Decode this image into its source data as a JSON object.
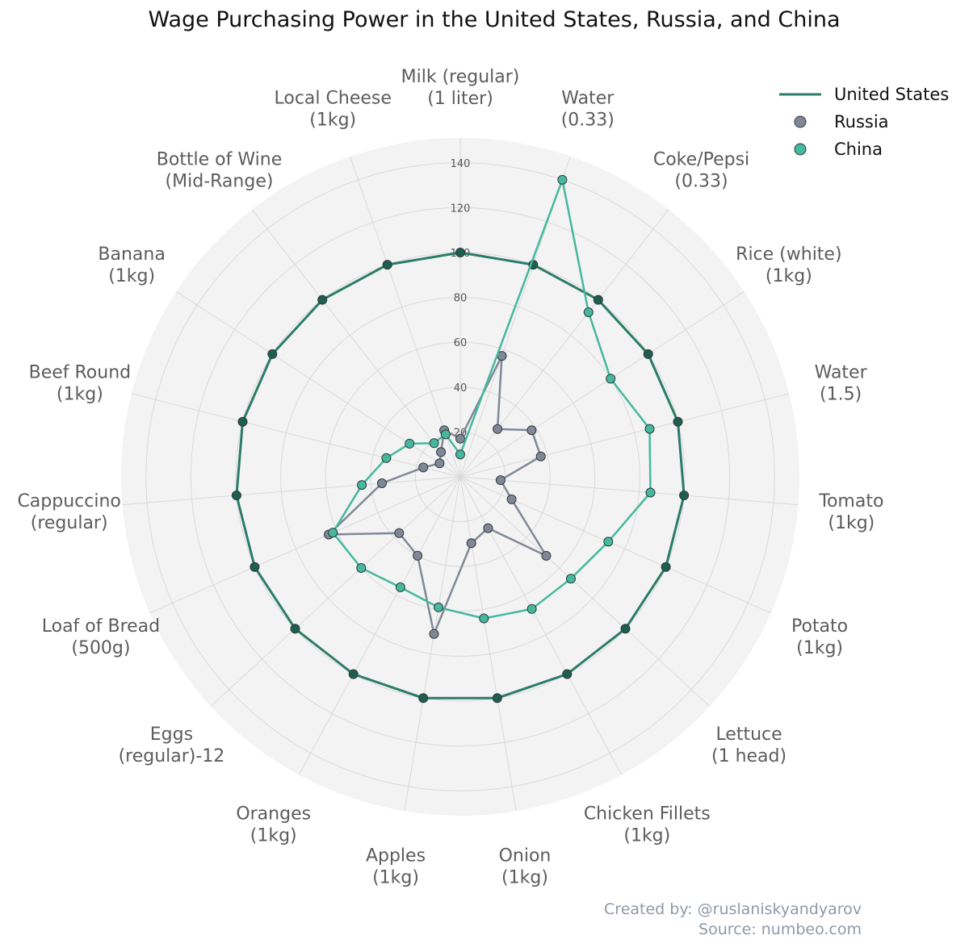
{
  "chart_data": {
    "type": "radar",
    "title": "Wage Purchasing Power in the United States, Russia, and China",
    "categories": [
      [
        "Milk (regular)",
        "(1 liter)"
      ],
      [
        "Water",
        "(0.33)"
      ],
      [
        "Coke/Pepsi",
        "(0.33)"
      ],
      [
        "Rice (white)",
        "(1kg)"
      ],
      [
        "Water",
        "(1.5)"
      ],
      [
        "Tomato",
        "(1kg)"
      ],
      [
        "Potato",
        "(1kg)"
      ],
      [
        "Lettuce",
        "(1 head)"
      ],
      [
        "Chicken Fillets",
        "(1kg)"
      ],
      [
        "Onion",
        "(1kg)"
      ],
      [
        "Apples",
        "(1kg)"
      ],
      [
        "Oranges",
        "(1kg)"
      ],
      [
        "Eggs",
        "(regular)-12"
      ],
      [
        "Loaf of Bread",
        "(500g)"
      ],
      [
        "Cappuccino",
        "(regular)"
      ],
      [
        "Beef Round",
        "(1kg)"
      ],
      [
        "Banana",
        "(1kg)"
      ],
      [
        "Bottle of Wine",
        "(Mid-Range)"
      ],
      [
        "Local Cheese",
        "(1kg)"
      ]
    ],
    "radial_ticks": [
      20,
      40,
      60,
      80,
      100,
      120,
      140
    ],
    "rlim": [
      0,
      150
    ],
    "grid": true,
    "legend_position": "top-right",
    "series": [
      {
        "name": "United States",
        "style": "line",
        "color": "#2a7c68",
        "values": [
          100,
          100,
          100,
          100,
          100,
          100,
          100,
          100,
          100,
          100,
          100,
          100,
          100,
          100,
          100,
          100,
          100,
          100,
          100
        ]
      },
      {
        "name": "Russia",
        "style": "marker",
        "color": "#808898",
        "values": [
          17,
          57,
          27,
          38,
          37,
          18,
          25,
          52,
          26,
          30,
          71,
          40,
          37,
          64,
          35,
          17,
          11,
          14,
          22
        ]
      },
      {
        "name": "China",
        "style": "marker",
        "color": "#45b89e",
        "values": [
          10,
          140,
          93,
          80,
          87,
          85,
          72,
          67,
          67,
          64,
          59,
          56,
          60,
          62,
          44,
          34,
          27,
          19,
          20
        ]
      }
    ],
    "credit": [
      "Created by: @ruslaniskyandyarov",
      "Source: numbeo.com"
    ]
  }
}
